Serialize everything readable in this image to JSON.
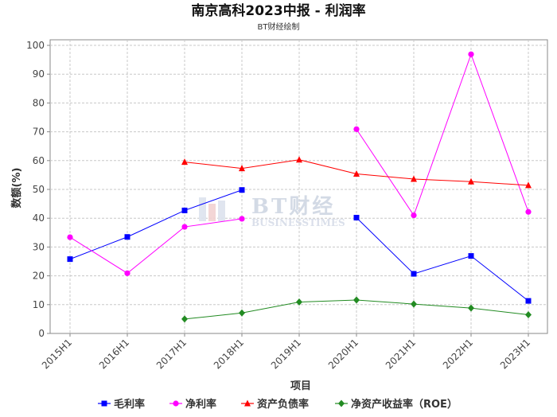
{
  "chart_data": {
    "type": "line",
    "title": "南京高科2023中报 - 利润率",
    "subtitle": "BT财经绘制",
    "xlabel": "项目",
    "ylabel": "数额(%)",
    "ylim": [
      0,
      100
    ],
    "yticks": [
      0,
      10,
      20,
      30,
      40,
      50,
      60,
      70,
      80,
      90,
      100
    ],
    "grid": true,
    "legend_position": "bottom",
    "categories": [
      "2015H1",
      "2016H1",
      "2017H1",
      "2018H1",
      "2019H1",
      "2020H1",
      "2021H1",
      "2022H1",
      "2023H1"
    ],
    "series": [
      {
        "name": "毛利率",
        "color": "#0000ff",
        "marker": "square",
        "values": [
          25.8,
          33.5,
          42.7,
          49.8,
          null,
          40.2,
          20.7,
          26.9,
          11.3
        ]
      },
      {
        "name": "净利率",
        "color": "#ff00ff",
        "marker": "circle",
        "values": [
          33.4,
          20.9,
          37.0,
          39.8,
          null,
          70.9,
          41.0,
          96.9,
          42.2
        ]
      },
      {
        "name": "资产负债率",
        "color": "#ff0000",
        "marker": "triangle",
        "values": [
          null,
          null,
          59.5,
          57.3,
          60.3,
          55.4,
          53.6,
          52.7,
          51.4
        ]
      },
      {
        "name": "净资产收益率（ROE）",
        "color": "#228b22",
        "marker": "diamond",
        "values": [
          null,
          null,
          5.0,
          7.1,
          10.9,
          11.6,
          10.2,
          8.8,
          6.5
        ]
      }
    ]
  },
  "watermark": {
    "main": "BT财经",
    "sub": "BUSINESSTIMES"
  }
}
